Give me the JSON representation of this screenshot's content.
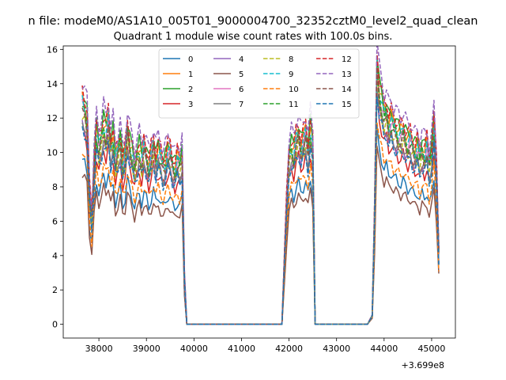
{
  "figure": {
    "suptitle": "n file: modeM0/AS1A10_005T01_9000004700_32352cztM0_level2_quad_clean",
    "offset_label": "+3.699e8"
  },
  "colors": {
    "palette": [
      "#1f77b4",
      "#ff7f0e",
      "#2ca02c",
      "#d62728",
      "#9467bd",
      "#8c564b",
      "#e377c2",
      "#7f7f7f",
      "#bcbd22",
      "#17becf",
      "#ff7f0e",
      "#2ca02c",
      "#d62728",
      "#9467bd",
      "#8c564b",
      "#1f77b4"
    ]
  },
  "chart_data": {
    "type": "line",
    "title": "Quadrant 1 module wise count rates with 100.0s bins.",
    "xlabel": "",
    "ylabel": "",
    "x_offset": 369900000,
    "xlim": [
      37250,
      45500
    ],
    "ylim": [
      -0.8,
      16.2
    ],
    "xticks": [
      38000,
      39000,
      40000,
      41000,
      42000,
      43000,
      44000,
      45000
    ],
    "yticks": [
      0,
      2,
      4,
      6,
      8,
      10,
      12,
      14,
      16
    ],
    "legend": {
      "position": "top-center",
      "columns": 4
    },
    "grid": false,
    "segments": [
      {
        "x_start": 37650,
        "x_end": 37850,
        "step": 50,
        "shape": [
          1.0,
          0.97,
          0.92,
          0.6,
          0.48
        ]
      },
      {
        "x_start": 37900,
        "x_end": 39700,
        "step": 50,
        "shape": [
          0.72,
          0.87,
          0.8,
          0.84,
          0.9,
          0.86,
          0.92,
          0.8,
          0.85,
          0.74,
          0.78,
          0.83,
          0.72,
          0.76,
          0.88,
          0.81,
          0.77,
          0.71,
          0.76,
          0.79,
          0.74,
          0.8,
          0.76,
          0.71,
          0.76,
          0.81,
          0.74,
          0.78,
          0.75,
          0.71,
          0.73,
          0.78,
          0.77,
          0.72,
          0.7,
          0.74,
          0.72
        ]
      },
      {
        "x_start": 39750,
        "x_end": 39850,
        "step": 50,
        "shape": [
          0.76,
          0.2,
          0.0
        ]
      },
      {
        "x_start": 39850,
        "x_end": 41850,
        "step": 100,
        "shape": [
          0.0
        ]
      },
      {
        "x_start": 41950,
        "x_end": 42450,
        "step": 50,
        "shape": [
          0.55,
          0.76,
          0.8,
          0.77,
          0.83,
          0.86,
          0.8,
          0.83,
          0.86,
          0.78,
          0.88
        ]
      },
      {
        "x_start": 42500,
        "x_end": 42550,
        "step": 50,
        "shape": [
          0.8,
          0.0
        ]
      },
      {
        "x_start": 42550,
        "x_end": 43700,
        "step": 100,
        "shape": [
          0.0
        ]
      },
      {
        "x_start": 43750,
        "x_end": 44050,
        "step": 50,
        "shape": [
          0.04,
          0.5,
          1.18,
          1.05,
          1.0,
          0.94,
          0.96
        ]
      },
      {
        "x_start": 44100,
        "x_end": 45050,
        "step": 50,
        "shape": [
          0.9,
          0.92,
          0.89,
          0.88,
          0.86,
          0.85,
          0.87,
          0.84,
          0.82,
          0.83,
          0.8,
          0.78,
          0.8,
          0.75,
          0.79,
          0.77,
          0.8,
          0.72,
          0.77,
          0.9
        ]
      },
      {
        "x_start": 45100,
        "x_end": 45150,
        "step": 50,
        "shape": [
          0.7,
          0.33
        ]
      }
    ],
    "series": [
      {
        "name": "0",
        "level": 9.6,
        "dash": false
      },
      {
        "name": "1",
        "level": 13.2,
        "dash": false
      },
      {
        "name": "2",
        "level": 13.4,
        "dash": false
      },
      {
        "name": "3",
        "level": 11.3,
        "dash": false
      },
      {
        "name": "4",
        "level": 11.8,
        "dash": false
      },
      {
        "name": "5",
        "level": 8.8,
        "dash": false
      },
      {
        "name": "6",
        "level": 12.7,
        "dash": false
      },
      {
        "name": "7",
        "level": 11.9,
        "dash": false
      },
      {
        "name": "8",
        "level": 12.1,
        "dash": true
      },
      {
        "name": "9",
        "level": 12.9,
        "dash": true
      },
      {
        "name": "10",
        "level": 10.2,
        "dash": true
      },
      {
        "name": "11",
        "level": 12.6,
        "dash": true
      },
      {
        "name": "12",
        "level": 13.6,
        "dash": true
      },
      {
        "name": "13",
        "level": 14.2,
        "dash": true
      },
      {
        "name": "14",
        "level": 12.3,
        "dash": true
      },
      {
        "name": "15",
        "level": 11.5,
        "dash": true
      }
    ]
  }
}
